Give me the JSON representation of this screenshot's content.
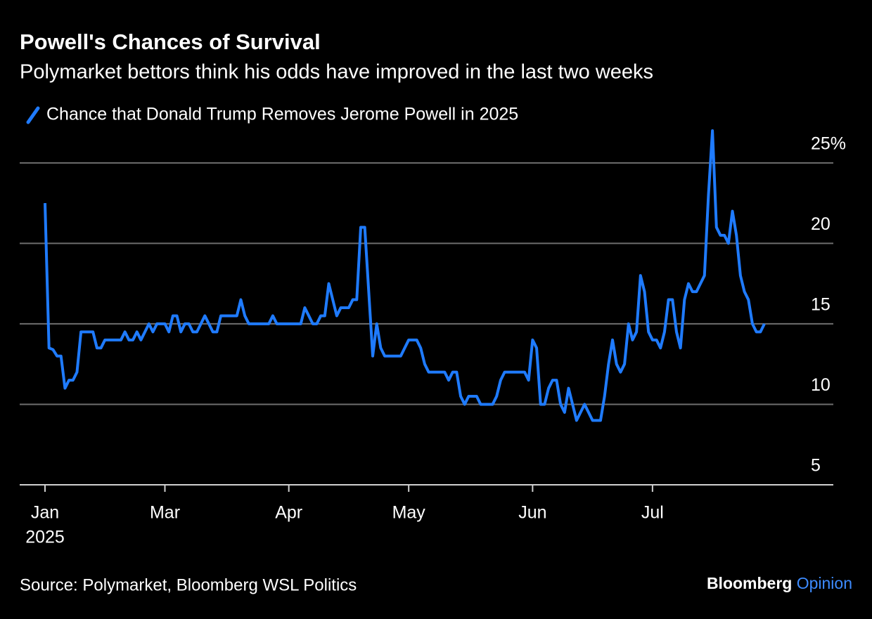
{
  "chart_data": {
    "type": "line",
    "title": "Powell's Chances of Survival",
    "subtitle": "Polymarket bettors think his odds have improved in the last two weeks",
    "source": "Source: Polymarket, Bloomberg WSL Politics",
    "branding": {
      "name": "Bloomberg",
      "product": "Opinion"
    },
    "x_sub_label": "2025",
    "categories": [
      "Jan",
      null,
      null,
      null,
      null,
      null,
      null,
      null,
      null,
      null,
      null,
      null,
      null,
      null,
      null,
      null,
      null,
      null,
      null,
      null,
      null,
      null,
      null,
      null,
      null,
      null,
      null,
      null,
      null,
      null,
      "Mar",
      null,
      null,
      null,
      null,
      null,
      null,
      null,
      null,
      null,
      null,
      null,
      null,
      null,
      null,
      null,
      null,
      null,
      null,
      null,
      null,
      null,
      null,
      null,
      null,
      null,
      null,
      null,
      null,
      null,
      null,
      "Apr",
      null,
      null,
      null,
      null,
      null,
      null,
      null,
      null,
      null,
      null,
      null,
      null,
      null,
      null,
      null,
      null,
      null,
      null,
      null,
      null,
      null,
      null,
      null,
      null,
      null,
      null,
      null,
      null,
      null,
      "May",
      null,
      null,
      null,
      null,
      null,
      null,
      null,
      null,
      null,
      null,
      null,
      null,
      null,
      null,
      null,
      null,
      null,
      null,
      null,
      null,
      null,
      null,
      null,
      null,
      null,
      null,
      null,
      null,
      null,
      null,
      "Jun",
      null,
      null,
      null,
      null,
      null,
      null,
      null,
      null,
      null,
      null,
      null,
      null,
      null,
      null,
      null,
      null,
      null,
      null,
      null,
      null,
      null,
      null,
      null,
      null,
      null,
      null,
      null,
      null,
      null,
      "Jul",
      null,
      null,
      null,
      null,
      null,
      null,
      null,
      null,
      null,
      null,
      null,
      null,
      null,
      null,
      null,
      null,
      null,
      null,
      null,
      null,
      null,
      null,
      null,
      null,
      null,
      null,
      null,
      null
    ],
    "series": [
      {
        "name": "Chance that Donald Trump Removes Jerome Powell in 2025",
        "color": "#1f7bff",
        "values": [
          22.5,
          13.5,
          13.4,
          13,
          13,
          11,
          11.5,
          11.5,
          12,
          14.5,
          14.5,
          14.5,
          14.5,
          13.5,
          13.5,
          14,
          14,
          14,
          14,
          14,
          14.5,
          14,
          14,
          14.5,
          14,
          14.5,
          15,
          14.5,
          15,
          15,
          15,
          14.5,
          15.5,
          15.5,
          14.5,
          15,
          15,
          14.5,
          14.5,
          15,
          15.5,
          15,
          14.5,
          14.5,
          15.5,
          15.5,
          15.5,
          15.5,
          15.5,
          16.5,
          15.5,
          15,
          15,
          15,
          15,
          15,
          15,
          15.5,
          15,
          15,
          15,
          15,
          15,
          15,
          15,
          16,
          15.5,
          15,
          15,
          15.5,
          15.5,
          17.5,
          16.5,
          15.5,
          16,
          16,
          16,
          16.5,
          16.5,
          21,
          21,
          17,
          13,
          15,
          13.5,
          13,
          13,
          13,
          13,
          13,
          13.5,
          14,
          14,
          14,
          13.5,
          12.5,
          12,
          12,
          12,
          12,
          12,
          11.5,
          12,
          12,
          10.5,
          10,
          10.5,
          10.5,
          10.5,
          10,
          10,
          10,
          10,
          10.5,
          11.5,
          12,
          12,
          12,
          12,
          12,
          12,
          11.5,
          14,
          13.5,
          10,
          10,
          11,
          11.5,
          11.5,
          10,
          9.5,
          11,
          10,
          9,
          9.5,
          10,
          9.5,
          9,
          9,
          9,
          10.5,
          12.5,
          14,
          12.5,
          12,
          12.5,
          15,
          14,
          14.5,
          18,
          17,
          14.5,
          14,
          14,
          13.5,
          14.5,
          16.5,
          16.5,
          14.5,
          13.5,
          16.5,
          17.5,
          17,
          17,
          17.5,
          18,
          23,
          27,
          21,
          20.5,
          20.5,
          20,
          22,
          20.5,
          18,
          17,
          16.5,
          15,
          14.5,
          14.5,
          15
        ]
      }
    ],
    "ylim": [
      5,
      27
    ],
    "yticks": [
      5,
      10,
      15,
      20,
      {
        "value": 25,
        "label": "25%"
      }
    ],
    "grid": true
  }
}
